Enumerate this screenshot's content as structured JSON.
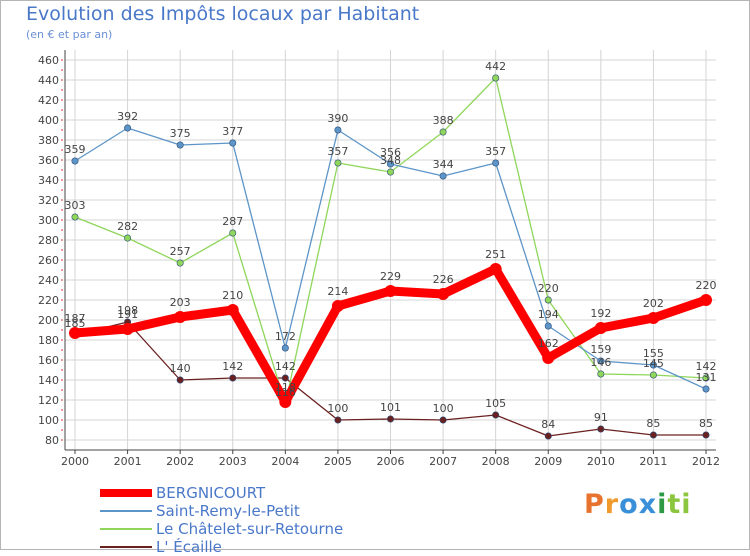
{
  "title": "Evolution des Impôts locaux par Habitant",
  "subtitle": "(en € et par an)",
  "logo": {
    "text": "Proxiti",
    "letters": [
      "P",
      "r",
      "o",
      "x",
      "i",
      "t",
      "i"
    ],
    "colors": [
      "#e8732f",
      "#ef9a2a",
      "#3a8fd9",
      "#3a8fd9",
      "#2e9a44",
      "#8cc63f",
      "#8cc63f"
    ]
  },
  "chart_data": {
    "type": "line",
    "title": "Evolution des Impôts locaux par Habitant",
    "subtitle": "(en € et par an)",
    "xlabel": "",
    "ylabel": "",
    "ylim": [
      80,
      460
    ],
    "ytick_step": 20,
    "grid": true,
    "legend_position": "bottom-left",
    "categories": [
      "2000",
      "2001",
      "2002",
      "2003",
      "2004",
      "2005",
      "2006",
      "2007",
      "2008",
      "2009",
      "2010",
      "2011",
      "2012"
    ],
    "series": [
      {
        "name": "BERGNICOURT",
        "color": "#ff0000",
        "bold": true,
        "values": [
          187,
          191,
          203,
          210,
          118,
          214,
          229,
          226,
          251,
          162,
          192,
          202,
          220
        ],
        "labels": [
          "187",
          "191",
          "203",
          "210",
          "118",
          "214",
          "229",
          "226",
          "251",
          "162",
          "192",
          "202",
          "220"
        ]
      },
      {
        "name": "Saint-Remy-le-Petit",
        "color": "#5d95c8",
        "bold": false,
        "values": [
          359,
          392,
          375,
          377,
          172,
          390,
          356,
          344,
          357,
          194,
          159,
          155,
          131
        ],
        "labels": [
          "359",
          "392",
          "375",
          "377",
          "172",
          "390",
          "356",
          "344",
          "357",
          "194",
          "159",
          "155",
          "131"
        ]
      },
      {
        "name": "Le Châtelet-sur-Retourne",
        "color": "#8fd65a",
        "bold": false,
        "values": [
          303,
          282,
          257,
          287,
          116,
          357,
          348,
          388,
          442,
          220,
          146,
          145,
          142
        ],
        "labels": [
          "303",
          "282",
          "257",
          "287",
          "116",
          "357",
          "348",
          "388",
          "442",
          "220",
          "146",
          "145",
          "142"
        ]
      },
      {
        "name": "L' Écaille",
        "color": "#6b2020",
        "bold": false,
        "values": [
          185,
          198,
          140,
          142,
          142,
          100,
          101,
          100,
          105,
          84,
          91,
          85,
          85
        ],
        "labels": [
          "185",
          "198",
          "140",
          "142",
          "142",
          "100",
          "101",
          "100",
          "105",
          "84",
          "91",
          "85",
          "85"
        ]
      }
    ]
  }
}
